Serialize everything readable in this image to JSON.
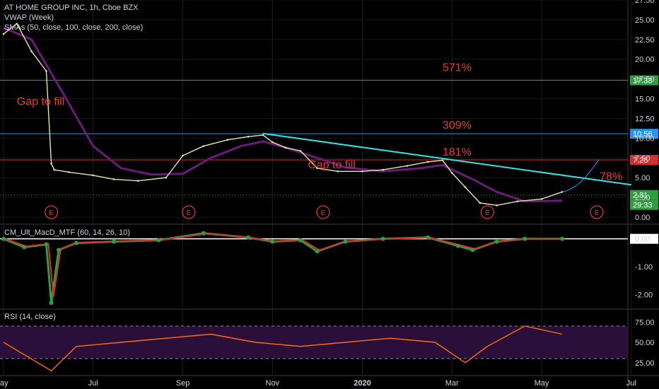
{
  "header": {
    "symbol_line": "AT HOME GROUP INC, 1h, Cboe BZX",
    "vwap_line": "VWAP (Week)",
    "sma_line": "SMAs (50, close, 100, close, 200, close)"
  },
  "colors": {
    "background": "#000000",
    "price": "#e8e6a8",
    "sma": "#6a1b7a",
    "trendline": "#2ee6e6",
    "annotation": "#e53935",
    "green_line": "#2e9e3f",
    "blue_line": "#2196f3",
    "red_line": "#d32f2f",
    "rsi_line": "#ff6d00",
    "rsi_band": "#2a0f3a"
  },
  "chart_data": [
    {
      "type": "line",
      "panel": "price",
      "ylim": [
        -0.8,
        27.5
      ],
      "y_ticks": [
        "27.50",
        "25.00",
        "22.50",
        "20.00",
        "17.50",
        "15.00",
        "12.50",
        "10.00",
        "7.50",
        "5.00",
        "2.50",
        "0.00"
      ],
      "x_ticks": [
        "ay",
        "Jul",
        "Sep",
        "Nov",
        "2020",
        "Mar",
        "May",
        "Jul"
      ],
      "price_series": {
        "name": "",
        "x": [
          "May 1",
          "May 10",
          "May 20",
          "May 30",
          "Jun 3",
          "Jun 5",
          "Jun 15",
          "Jul 1",
          "Jul 15",
          "Aug 1",
          "Aug 20",
          "Sep 1",
          "Sep 15",
          "Oct 1",
          "Oct 15",
          "Oct 25",
          "Nov 1",
          "Nov 10",
          "Nov 20",
          "Dec 1",
          "Dec 15",
          "Jan 1",
          "Jan 15",
          "Feb 1",
          "Feb 15",
          "Feb 25",
          "Mar 1",
          "Mar 10",
          "Mar 20",
          "Apr 1",
          "Apr 15",
          "May 1",
          "May 15"
        ],
        "values": [
          23.2,
          24.5,
          21.0,
          18.5,
          6.8,
          6.0,
          5.7,
          5.3,
          4.8,
          4.6,
          5.0,
          7.8,
          9.0,
          9.8,
          10.2,
          10.4,
          9.5,
          8.8,
          8.4,
          6.2,
          5.8,
          5.8,
          6.0,
          6.5,
          7.0,
          7.2,
          5.6,
          3.8,
          1.8,
          1.5,
          2.0,
          2.3,
          3.2
        ]
      },
      "sma_series": {
        "name": "",
        "x": [
          "May 1",
          "May 20",
          "Jun 10",
          "Jul 1",
          "Jul 20",
          "Aug 10",
          "Sep 1",
          "Sep 20",
          "Oct 10",
          "Oct 25",
          "Nov 10",
          "Dec 1",
          "Dec 20",
          "Jan 15",
          "Feb 10",
          "Feb 25",
          "Mar 15",
          "Apr 1",
          "Apr 20",
          "May 15"
        ],
        "values": [
          24.0,
          22.5,
          16.0,
          9.0,
          6.2,
          5.4,
          5.5,
          7.5,
          9.0,
          9.6,
          8.8,
          7.5,
          6.3,
          5.8,
          6.2,
          6.6,
          4.8,
          3.2,
          2.0,
          2.1
        ]
      },
      "horizontal_levels": [
        {
          "value": 17.33,
          "label": "17.33",
          "color": "#2e9e3f"
        },
        {
          "value": 10.56,
          "label": "10.56",
          "color": "#2196f3"
        },
        {
          "value": 7.26,
          "label": "7.26",
          "color": "#d32f2f"
        },
        {
          "value": 2.81,
          "label": "2.81",
          "color": "#2e9e3f",
          "dotted": true
        }
      ],
      "countdown_label": "29:33",
      "trendline": {
        "from": [
          "Oct 25",
          10.6
        ],
        "to": [
          "Jul 1 2020",
          4.1
        ]
      },
      "annotations": [
        {
          "text": "571%",
          "x": "Feb 25",
          "y": 18.5
        },
        {
          "text": "309%",
          "x": "Feb 25",
          "y": 11.2
        },
        {
          "text": "181%",
          "x": "Feb 25",
          "y": 7.8
        },
        {
          "text": "Gap to fill",
          "x": "May 10",
          "y": 14.2
        },
        {
          "text": "Gap to fill",
          "x": "Nov 25",
          "y": 6.2
        },
        {
          "text": "78%",
          "x": "Jun 10 2020",
          "y": 4.7
        }
      ],
      "earnings_markers": [
        "E",
        "E",
        "E",
        "E",
        "E"
      ]
    },
    {
      "type": "line",
      "panel": "macd",
      "title": "CM_Ult_MacD_MTF (60, 14, 26, 10)",
      "ylim": [
        -2.5,
        0.5
      ],
      "y_ticks": [
        "0.00",
        "-1.00",
        "-2.00"
      ],
      "series": [
        {
          "name": "",
          "x": [
            "May 1",
            "May 15",
            "May 30",
            "Jun 3",
            "Jun 8",
            "Jun 20",
            "Jul 15",
            "Aug 15",
            "Sep 15",
            "Oct 15",
            "Nov 1",
            "Nov 20",
            "Dec 1",
            "Dec 20",
            "Jan 15",
            "Feb 15",
            "Mar 5",
            "Mar 15",
            "Apr 1",
            "Apr 20",
            "May 15"
          ],
          "values": [
            0.0,
            -0.3,
            -0.2,
            -2.3,
            -0.4,
            -0.15,
            -0.1,
            -0.05,
            0.2,
            0.05,
            -0.1,
            -0.05,
            -0.45,
            -0.1,
            0.0,
            0.05,
            -0.25,
            -0.4,
            -0.1,
            0.0,
            0.0
          ]
        }
      ]
    },
    {
      "type": "line",
      "panel": "rsi",
      "title": "RSI (14, close)",
      "ylim": [
        10,
        90
      ],
      "y_ticks": [
        "75.00",
        "50.00",
        "25.00"
      ],
      "bands": [
        30,
        70
      ],
      "series": [
        {
          "name": "",
          "x": [
            "May 1",
            "Jun 3",
            "Jun 20",
            "Jul 20",
            "Aug 20",
            "Sep 20",
            "Oct 20",
            "Nov 20",
            "Dec 20",
            "Jan 20",
            "Feb 20",
            "Mar 10",
            "Mar 25",
            "Apr 20",
            "May 15"
          ],
          "values": [
            50,
            15,
            45,
            50,
            55,
            60,
            50,
            45,
            50,
            55,
            50,
            25,
            45,
            70,
            60
          ]
        }
      ]
    }
  ]
}
